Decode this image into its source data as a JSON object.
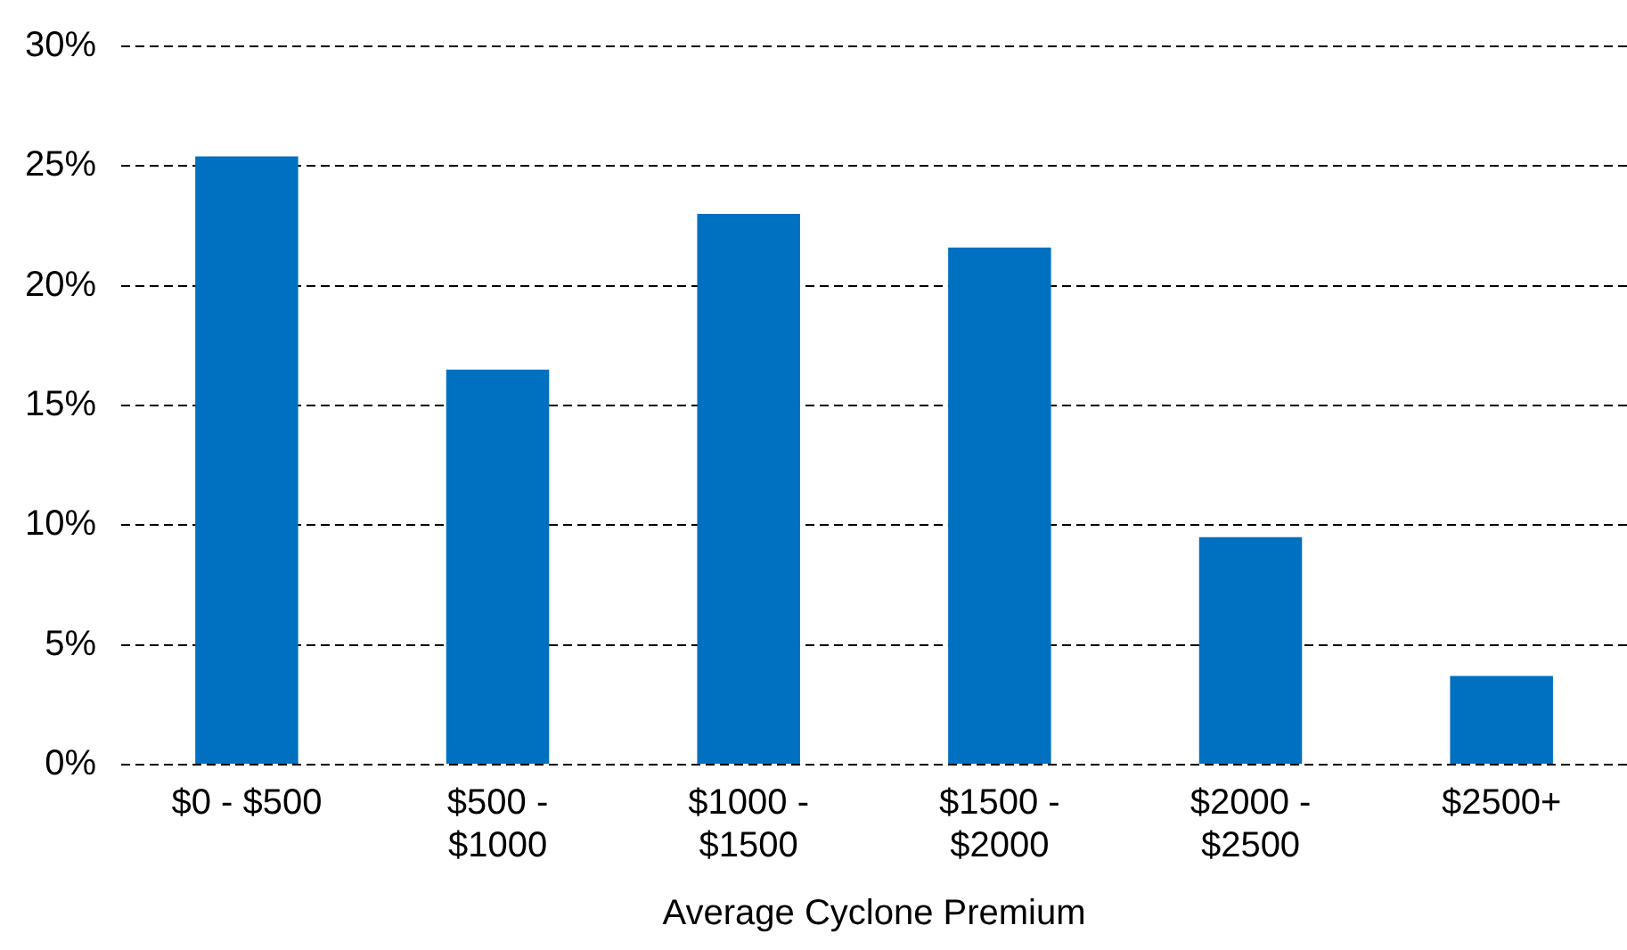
{
  "chart_data": {
    "type": "bar",
    "xlabel": "Average Cyclone Premium",
    "categories": [
      "$0 - $500",
      "$500 - $1000",
      "$1000 - $1500",
      "$1500 - $2000",
      "$2000 - $2500",
      "$2500+"
    ],
    "values": [
      25.4,
      16.5,
      23.0,
      21.6,
      9.5,
      3.7
    ],
    "color": "#0070c0",
    "ylim": [
      0,
      30
    ],
    "yticks": [
      {
        "value": 0,
        "label": "0%"
      },
      {
        "value": 5,
        "label": "5%"
      },
      {
        "value": 10,
        "label": "10%"
      },
      {
        "value": 15,
        "label": "15%"
      },
      {
        "value": 20,
        "label": "20%"
      },
      {
        "value": 25,
        "label": "25%"
      },
      {
        "value": 30,
        "label": "30%"
      }
    ],
    "grid": "y",
    "legend": false
  }
}
